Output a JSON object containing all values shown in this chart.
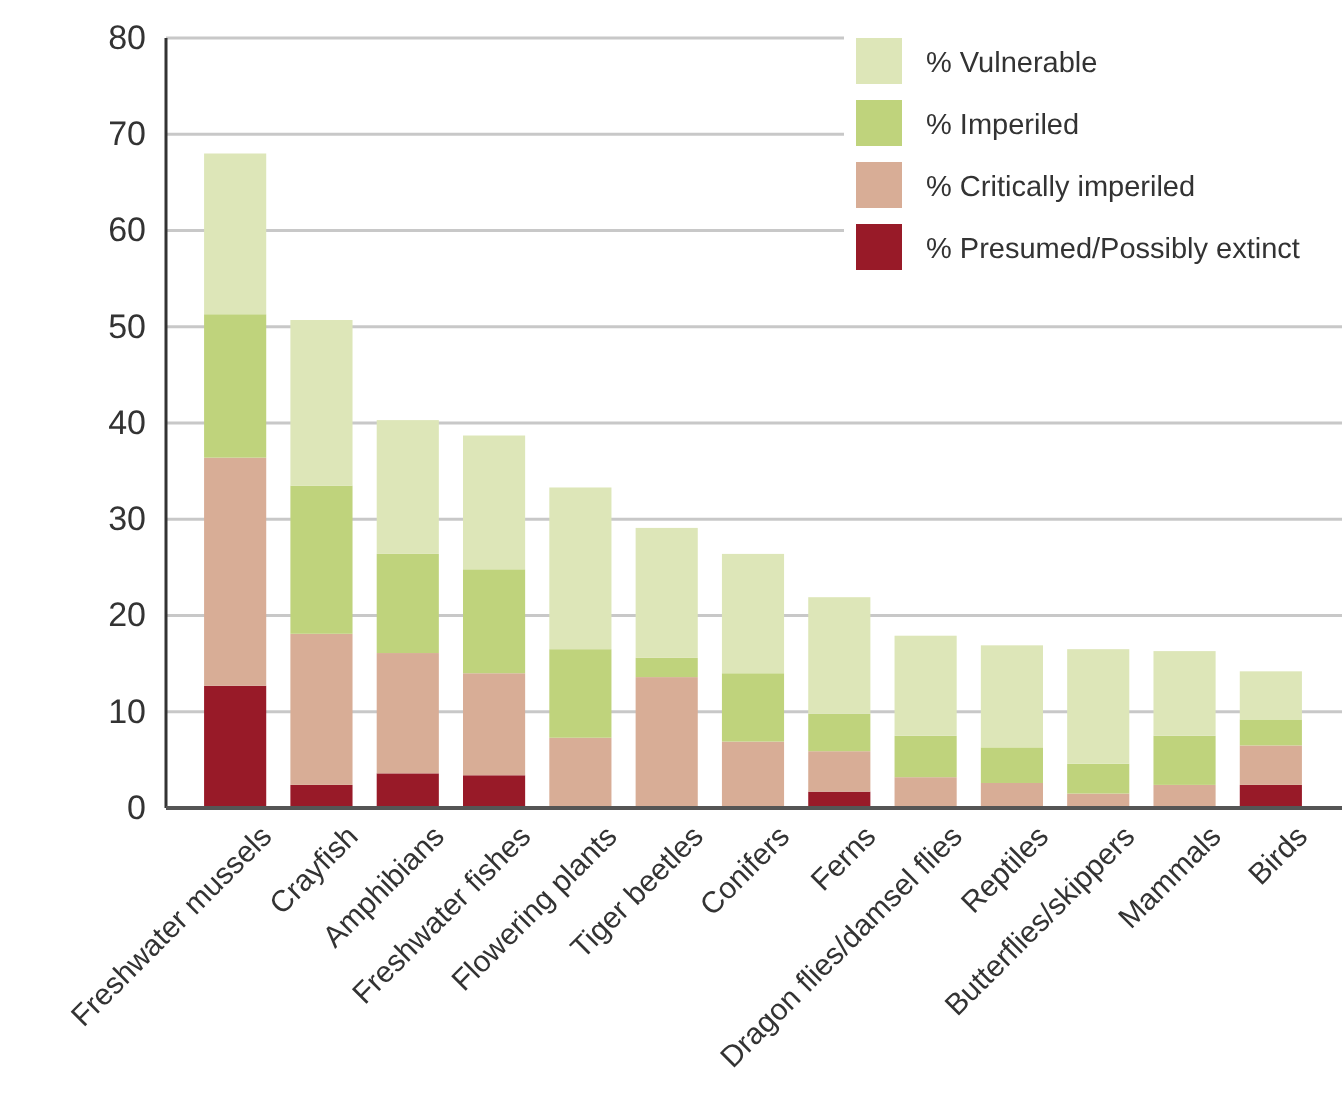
{
  "chart_data": {
    "type": "bar",
    "stacked": true,
    "categories": [
      "Freshwater mussels",
      "Crayfish",
      "Amphibians",
      "Freshwater fishes",
      "Flowering plants",
      "Tiger beetles",
      "Conifers",
      "Ferns",
      "Dragon flies/damsel flies",
      "Reptiles",
      "Butterflies/skippers",
      "Mammals",
      "Birds"
    ],
    "series": [
      {
        "name": "% Presumed/Possibly extinct",
        "color": "#981a28",
        "values": [
          12.7,
          2.4,
          3.6,
          3.4,
          0,
          0,
          0,
          1.7,
          0,
          0,
          0,
          0,
          2.4
        ]
      },
      {
        "name": "% Critically imperiled",
        "color": "#d8ad96",
        "values": [
          23.7,
          15.7,
          12.5,
          10.6,
          7.3,
          13.6,
          6.9,
          4.2,
          3.2,
          2.6,
          1.5,
          2.4,
          4.1
        ]
      },
      {
        "name": "% Imperiled",
        "color": "#bfd37c",
        "values": [
          14.9,
          15.4,
          10.3,
          10.8,
          9.2,
          2.0,
          7.1,
          3.9,
          4.3,
          3.7,
          3.1,
          5.1,
          2.7
        ]
      },
      {
        "name": "% Vulnerable",
        "color": "#dde6b8",
        "values": [
          16.7,
          17.2,
          13.9,
          13.9,
          16.8,
          13.5,
          12.4,
          12.1,
          10.4,
          10.6,
          11.9,
          8.8,
          5.0
        ]
      }
    ],
    "ylim": [
      0,
      80
    ],
    "yticks": [
      0,
      10,
      20,
      30,
      40,
      50,
      60,
      70,
      80
    ],
    "grid": "y",
    "legend": "top right"
  }
}
